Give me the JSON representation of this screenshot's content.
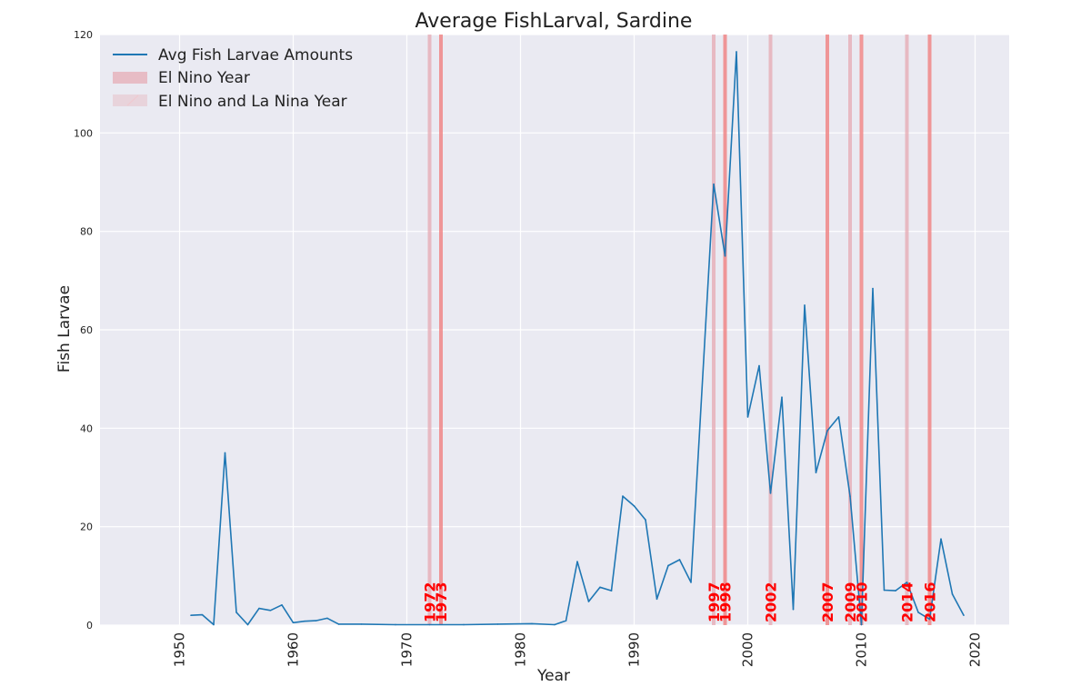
{
  "chart_data": {
    "type": "line",
    "title": "Average FishLarval, Sardine",
    "xlabel": "Year",
    "ylabel": "Fish Larvae",
    "xlim": [
      1943,
      2023
    ],
    "ylim": [
      0,
      120
    ],
    "xticks": [
      1950,
      1960,
      1970,
      1980,
      1990,
      2000,
      2010,
      2020
    ],
    "yticks": [
      0,
      20,
      40,
      60,
      80,
      100,
      120
    ],
    "grid": true,
    "legend_position": "top-left",
    "series": [
      {
        "name": "Avg Fish Larvae Amounts",
        "color": "#1f77b4",
        "x": [
          1951,
          1952,
          1953,
          1954,
          1955,
          1956,
          1957,
          1958,
          1959,
          1960,
          1961,
          1962,
          1963,
          1964,
          1966,
          1969,
          1972,
          1975,
          1978,
          1981,
          1983,
          1984,
          1985,
          1986,
          1987,
          1988,
          1989,
          1990,
          1991,
          1992,
          1993,
          1994,
          1995,
          1997,
          1998,
          1999,
          2000,
          2001,
          2002,
          2003,
          2004,
          2005,
          2006,
          2007,
          2008,
          2009,
          2010,
          2011,
          2012,
          2013,
          2014,
          2015,
          2016,
          2017,
          2018,
          2019
        ],
        "values": [
          2.0,
          2.1,
          0.1,
          35.0,
          2.6,
          0.1,
          3.4,
          3.0,
          4.1,
          0.5,
          0.8,
          0.9,
          1.4,
          0.2,
          0.2,
          0.1,
          0.1,
          0.1,
          0.2,
          0.3,
          0.1,
          0.9,
          12.9,
          4.8,
          7.7,
          7.0,
          26.2,
          24.2,
          21.4,
          5.3,
          12.1,
          13.3,
          8.7,
          89.6,
          75.0,
          116.5,
          42.3,
          52.7,
          26.8,
          46.3,
          3.2,
          65.0,
          31.0,
          39.5,
          42.3,
          26.2,
          0.1,
          68.4,
          7.1,
          7.0,
          8.7,
          2.6,
          1.2,
          17.5,
          6.3,
          2.0
        ]
      }
    ],
    "legend": {
      "line_label": "Avg Fish Larvae Amounts",
      "el_nino_label": "El Nino Year",
      "el_nino_la_nina_label": "El Nino and La Nina Year"
    },
    "el_nino_years": [
      {
        "year": 1973,
        "label": "1973"
      },
      {
        "year": 1998,
        "label": "1998"
      },
      {
        "year": 2007,
        "label": "2007"
      },
      {
        "year": 2010,
        "label": "2010"
      },
      {
        "year": 2016,
        "label": "2016"
      }
    ],
    "el_nino_la_nina_years": [
      {
        "year": 1972,
        "label": "1972"
      },
      {
        "year": 1997,
        "label": "1997"
      },
      {
        "year": 2002,
        "label": "2002"
      },
      {
        "year": 2009,
        "label": "2009"
      },
      {
        "year": 2014,
        "label": "2014"
      }
    ],
    "colors": {
      "background": "#eaeaf2",
      "grid": "#ffffff",
      "line": "#1f77b4",
      "el_nino": "#f08080",
      "el_nino_la_nina": "#e6a8b2",
      "annotation": "#ff0000"
    }
  }
}
